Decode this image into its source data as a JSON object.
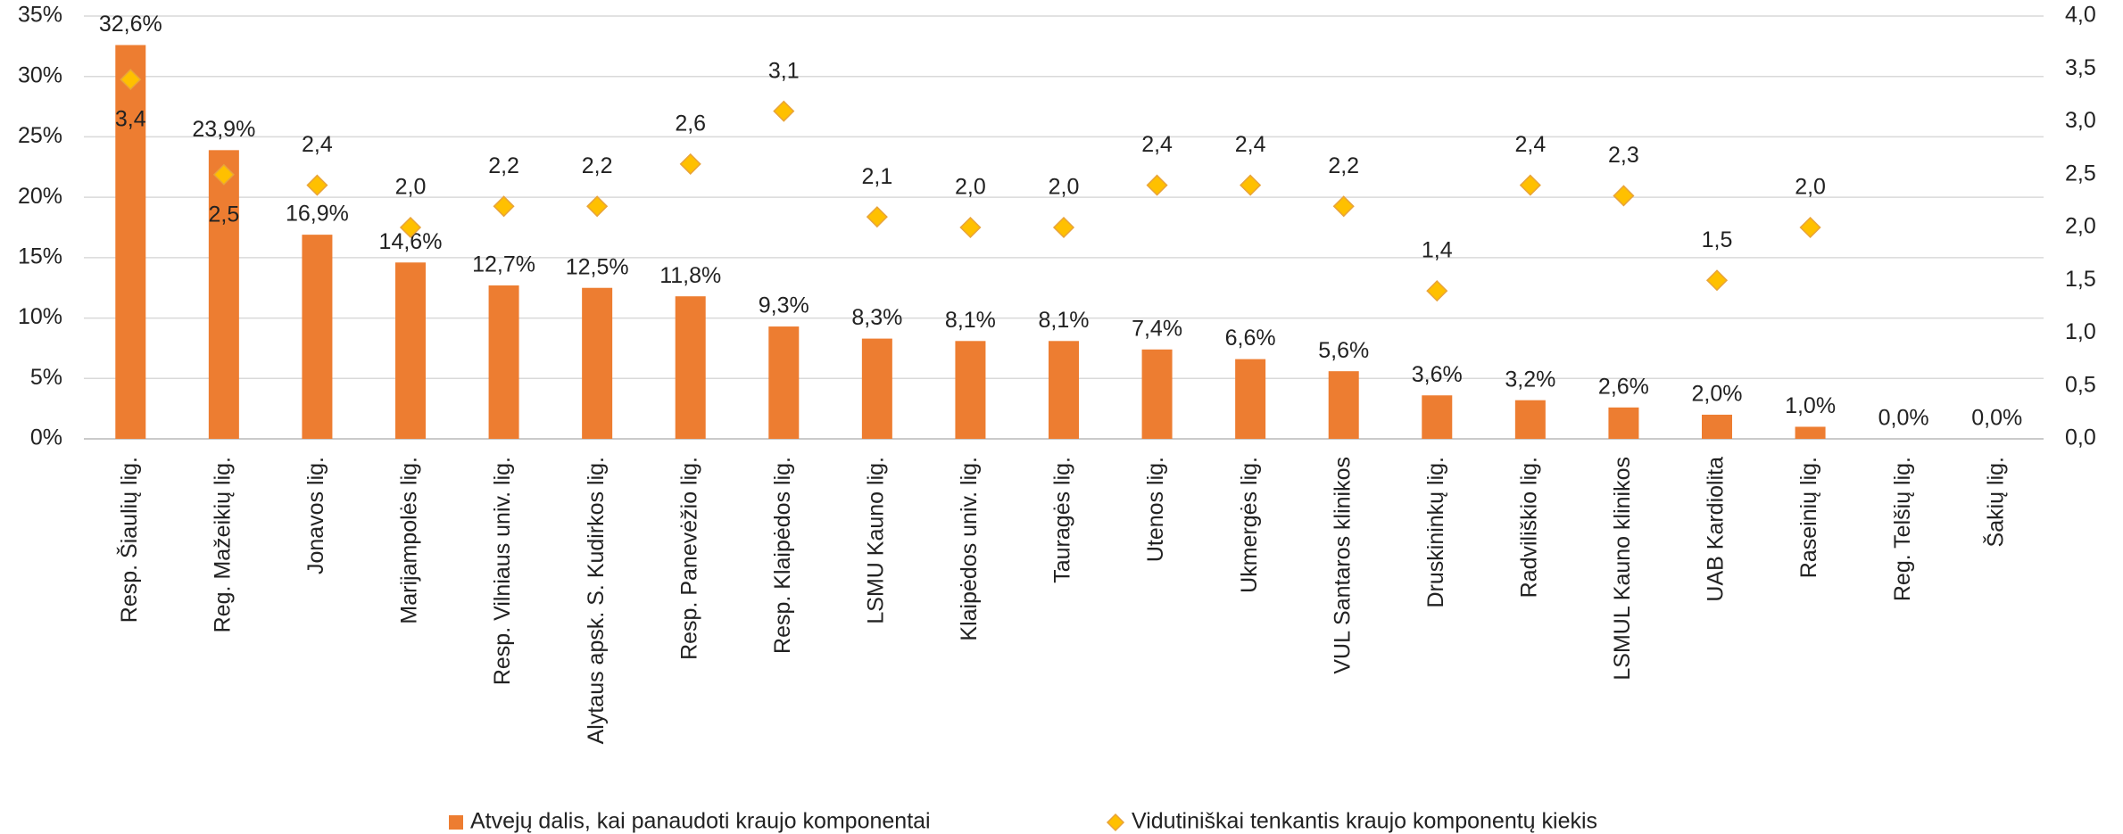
{
  "chart_data": {
    "type": "bar",
    "categories": [
      "Resp. Šiaulių lig.",
      "Reg. Mažeikių lig.",
      "Jonavos lig.",
      "Marijampolės lig.",
      "Resp. Vilniaus univ. lig.",
      "Alytaus apsk. S. Kudirkos lig.",
      "Resp. Panevėžio lig.",
      "Resp. Klaipėdos lig.",
      "LSMU Kauno lig.",
      "Klaipėdos univ. lig.",
      "Tauragės lig.",
      "Utenos lig.",
      "Ukmergės lig.",
      "VUL Santaros klinikos",
      "Druskininkų lig.",
      "Radviliškio lig.",
      "LSMUL Kauno klinikos",
      "UAB Kardiolita",
      "Raseinių lig.",
      "Reg. Telšių lig.",
      "Šakių lig."
    ],
    "series": [
      {
        "name": "Atvejų dalis, kai panaudoti kraujo komponentai",
        "type": "bar",
        "color": "#ED7D31",
        "values": [
          32.6,
          23.9,
          16.9,
          14.6,
          12.7,
          12.5,
          11.8,
          9.3,
          8.3,
          8.1,
          8.1,
          7.4,
          6.6,
          5.6,
          3.6,
          3.2,
          2.6,
          2.0,
          1.0,
          0.0,
          0.0
        ],
        "value_labels": [
          "32,6%",
          "23,9%",
          "16,9%",
          "14,6%",
          "12,7%",
          "12,5%",
          "11,8%",
          "9,3%",
          "8,3%",
          "8,1%",
          "8,1%",
          "7,4%",
          "6,6%",
          "5,6%",
          "3,6%",
          "3,2%",
          "2,6%",
          "2,0%",
          "1,0%",
          "0,0%",
          "0,0%"
        ]
      },
      {
        "name": "Vidutiniškai tenkantis kraujo komponentų kiekis",
        "type": "scatter",
        "axis": "y2",
        "color": "#FFC000",
        "values": [
          3.4,
          2.5,
          2.4,
          2.0,
          2.2,
          2.2,
          2.6,
          3.1,
          2.1,
          2.0,
          2.0,
          2.4,
          2.4,
          2.2,
          1.4,
          2.4,
          2.3,
          1.5,
          2.0,
          null,
          null
        ],
        "value_labels": [
          "3,4",
          "2,5",
          "2,4",
          "2,0",
          "2,2",
          "2,2",
          "2,6",
          "3,1",
          "2,1",
          "2,0",
          "2,0",
          "2,4",
          "2,4",
          "2,2",
          "1,4",
          "2,4",
          "2,3",
          "1,5",
          "2,0",
          null,
          null
        ]
      }
    ],
    "ylim": [
      0,
      35
    ],
    "yticks": [
      {
        "value": 0,
        "label": "0%"
      },
      {
        "value": 5,
        "label": "5%"
      },
      {
        "value": 10,
        "label": "10%"
      },
      {
        "value": 15,
        "label": "15%"
      },
      {
        "value": 20,
        "label": "20%"
      },
      {
        "value": 25,
        "label": "25%"
      },
      {
        "value": 30,
        "label": "30%"
      },
      {
        "value": 35,
        "label": "35%"
      }
    ],
    "y2lim": [
      0,
      4
    ],
    "y2ticks": [
      {
        "value": 0,
        "label": "0,0"
      },
      {
        "value": 0.5,
        "label": "0,5"
      },
      {
        "value": 1,
        "label": "1,0"
      },
      {
        "value": 1.5,
        "label": "1,5"
      },
      {
        "value": 2,
        "label": "2,0"
      },
      {
        "value": 2.5,
        "label": "2,5"
      },
      {
        "value": 3,
        "label": "3,0"
      },
      {
        "value": 3.5,
        "label": "3,5"
      },
      {
        "value": 4,
        "label": "4,0"
      }
    ],
    "grid": true,
    "legend": "bottom"
  }
}
